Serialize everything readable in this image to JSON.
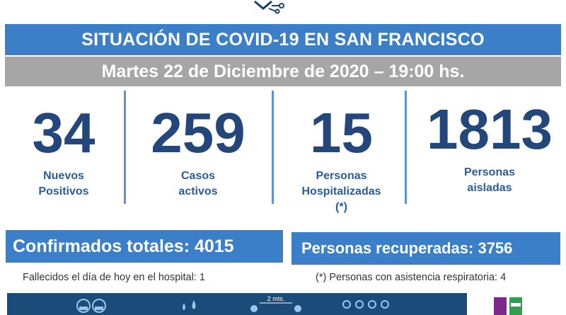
{
  "header": {
    "title": "SITUACIÓN DE COVID-19 EN SAN FRANCISCO",
    "date": "Martes 22 de Diciembre de 2020 – 19:00 hs."
  },
  "stats": [
    {
      "value": "34",
      "label_line1": "Nuevos",
      "label_line2": "Positivos",
      "label_line3": ""
    },
    {
      "value": "259",
      "label_line1": "Casos",
      "label_line2": "activos",
      "label_line3": ""
    },
    {
      "value": "15",
      "label_line1": "Personas",
      "label_line2": "Hospitalizadas",
      "label_line3": "(*)"
    },
    {
      "value": "1813",
      "label_line1": "Personas",
      "label_line2": "aisladas",
      "label_line3": ""
    }
  ],
  "totals": {
    "confirmed": "Confirmados totales: 4015",
    "recovered": "Personas recuperadas: 3756"
  },
  "footnotes": {
    "deaths": "Fallecidos el día de hoy en el hospital: 1",
    "respiratory": "(*) Personas con asistencia respiratoria: 4"
  },
  "bottom_band": {
    "distance_label": "2 mts.",
    "icons": [
      "masked-people-icon",
      "water-drops-icon",
      "social-distance-icon",
      "people-group-icon"
    ]
  },
  "colors": {
    "title_blue": "#3a7fc7",
    "date_gray": "#a6a6a6",
    "number_navy": "#23477a",
    "band_navy": "#1b4b78"
  }
}
